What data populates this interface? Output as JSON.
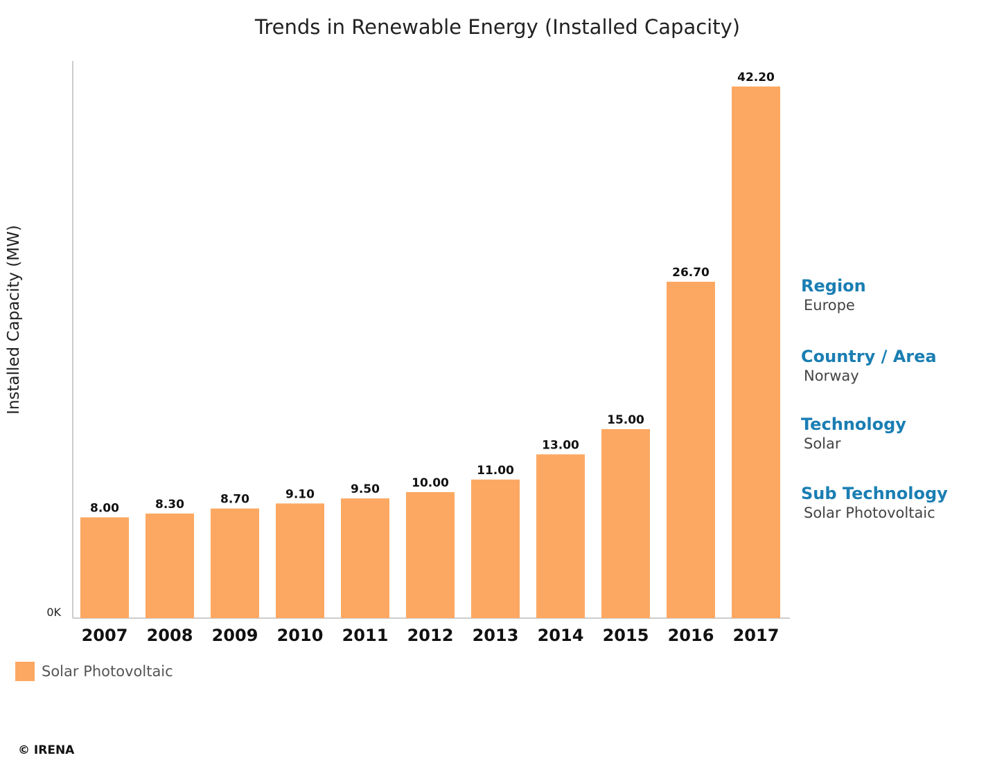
{
  "chart_data": {
    "type": "bar",
    "title": "Trends in Renewable Energy (Installed Capacity)",
    "xlabel": "",
    "ylabel": "Installed Capacity (MW)",
    "y_tick_labels": [
      "0K"
    ],
    "ylim": [
      0,
      44
    ],
    "categories": [
      "2007",
      "2008",
      "2009",
      "2010",
      "2011",
      "2012",
      "2013",
      "2014",
      "2015",
      "2016",
      "2017"
    ],
    "series": [
      {
        "name": "Solar Photovoltaic",
        "color": "#fda862",
        "values": [
          8.0,
          8.3,
          8.7,
          9.1,
          9.5,
          10.0,
          11.0,
          13.0,
          15.0,
          26.7,
          42.2
        ],
        "labels": [
          "8.00",
          "8.30",
          "8.70",
          "9.10",
          "9.50",
          "10.00",
          "11.00",
          "13.00",
          "15.00",
          "26.70",
          "42.20"
        ]
      }
    ],
    "legend_position": "bottom-left"
  },
  "info": {
    "region_heading": "Region",
    "region_value": "Europe",
    "country_heading": "Country / Area",
    "country_value": "Norway",
    "technology_heading": "Technology",
    "technology_value": "Solar",
    "subtech_heading": "Sub Technology",
    "subtech_value": "Solar Photovoltaic"
  },
  "legend": {
    "label": "Solar Photovoltaic"
  },
  "footer": {
    "copyright": "© IRENA"
  },
  "colors": {
    "bar": "#fda862",
    "heading": "#1a7eb3",
    "axis": "#bbbbbb"
  }
}
